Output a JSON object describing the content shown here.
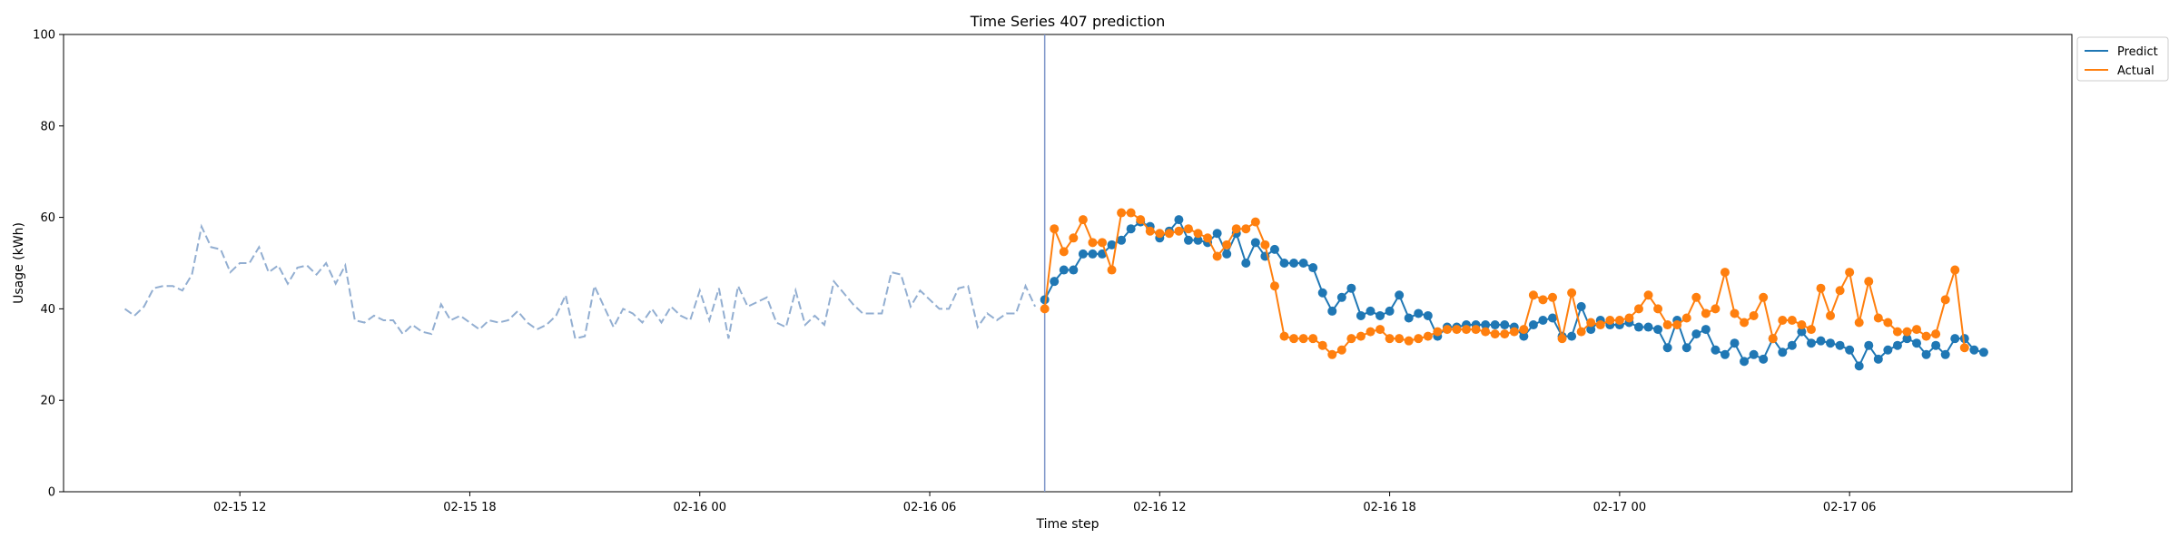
{
  "chart_data": {
    "type": "line",
    "title": "Time Series 407 prediction",
    "xlabel": "Time step",
    "ylabel": "Usage (kWh)",
    "ylim": [
      0,
      100
    ],
    "xlim": [
      "02-15 07:24",
      "02-17 11:48"
    ],
    "yticks": [
      0,
      20,
      40,
      60,
      80,
      100
    ],
    "xticks": [
      "02-15 12",
      "02-15 18",
      "02-16 00",
      "02-16 06",
      "02-16 12",
      "02-16 18",
      "02-17 00",
      "02-17 06"
    ],
    "grid": false,
    "legend": {
      "position": "top-right"
    },
    "forecast_start": "02-16 09:00",
    "history": {
      "start": "02-15 09:00",
      "step_minutes": 15,
      "color": "#92aed1",
      "style": "dashed",
      "values": [
        40,
        38.5,
        40.5,
        44.5,
        45,
        45,
        44,
        47.5,
        58,
        53.5,
        53,
        48,
        50,
        50,
        53.5,
        48,
        49.5,
        45.5,
        49,
        49.5,
        47.5,
        50,
        45.5,
        49.5,
        37.5,
        37,
        38.5,
        37.5,
        37.5,
        34.5,
        36.5,
        35,
        34.5,
        41,
        37.5,
        38.5,
        37,
        35.5,
        37.5,
        37,
        37.5,
        39.5,
        37,
        35.5,
        36.5,
        38.5,
        43,
        33.5,
        34,
        45,
        40.5,
        36,
        40,
        39,
        37,
        40,
        37,
        40.5,
        38.5,
        37.5,
        44,
        37.5,
        44.5,
        33.5,
        45,
        40.5,
        41.5,
        42.5,
        37,
        36,
        44,
        36.5,
        38.5,
        36.5,
        46,
        43.5,
        41,
        39,
        39,
        39,
        48,
        47.5,
        40.5,
        44,
        42,
        40,
        40,
        44.5,
        45,
        36,
        39,
        37.5,
        39,
        39,
        45,
        40.5
      ]
    },
    "series": [
      {
        "name": "Predict",
        "color": "#1f77b4",
        "start": "02-16 09:00",
        "step_minutes": 15,
        "values": [
          42,
          46,
          48.5,
          48.5,
          52,
          52,
          52,
          54,
          55,
          57.5,
          59,
          58,
          55.5,
          57,
          59.5,
          55,
          55,
          54.5,
          56.5,
          52,
          56.5,
          50,
          54.5,
          51.5,
          53,
          50,
          50,
          50,
          49,
          43.5,
          39.5,
          42.5,
          44.5,
          38.5,
          39.5,
          38.5,
          39.5,
          43,
          38,
          39,
          38.5,
          34,
          36,
          36,
          36.5,
          36.5,
          36.5,
          36.5,
          36.5,
          36,
          34,
          36.5,
          37.5,
          38,
          34,
          34,
          40.5,
          35.5,
          37.5,
          36.5,
          36.5,
          37,
          36,
          36,
          35.5,
          31.5,
          37.5,
          31.5,
          34.5,
          35.5,
          31,
          30,
          32.5,
          28.5,
          30,
          29,
          33.5,
          30.5,
          32,
          35,
          32.5,
          33,
          32.5,
          32,
          31,
          27.5,
          32,
          29,
          31,
          32,
          33.5,
          32.5,
          30,
          32,
          30,
          33.5,
          33.5,
          31,
          30.5
        ]
      },
      {
        "name": "Actual",
        "color": "#ff7f0e",
        "start": "02-16 09:00",
        "step_minutes": 15,
        "values": [
          40,
          57.5,
          52.5,
          55.5,
          59.5,
          54.5,
          54.5,
          48.5,
          61,
          61,
          59.5,
          57,
          56.5,
          56.5,
          57,
          57.5,
          56.5,
          55.5,
          51.5,
          54,
          57.5,
          57.5,
          59,
          54,
          45,
          34,
          33.5,
          33.5,
          33.5,
          32,
          30,
          31,
          33.5,
          34,
          35,
          35.5,
          33.5,
          33.5,
          33,
          33.5,
          34,
          35,
          35.5,
          35.5,
          35.5,
          35.5,
          35,
          34.5,
          34.5,
          35,
          35.5,
          43,
          42,
          42.5,
          33.5,
          43.5,
          35,
          37,
          36.5,
          37.5,
          37.5,
          38,
          40,
          43,
          40,
          36.5,
          36.5,
          38,
          42.5,
          39,
          40,
          48,
          39,
          37,
          38.5,
          42.5,
          33.5,
          37.5,
          37.5,
          36.5,
          35.5,
          44.5,
          38.5,
          44,
          48,
          37,
          46,
          38,
          37,
          35,
          35,
          35.5,
          34,
          34.5,
          42,
          48.5,
          31.5
        ]
      }
    ]
  }
}
